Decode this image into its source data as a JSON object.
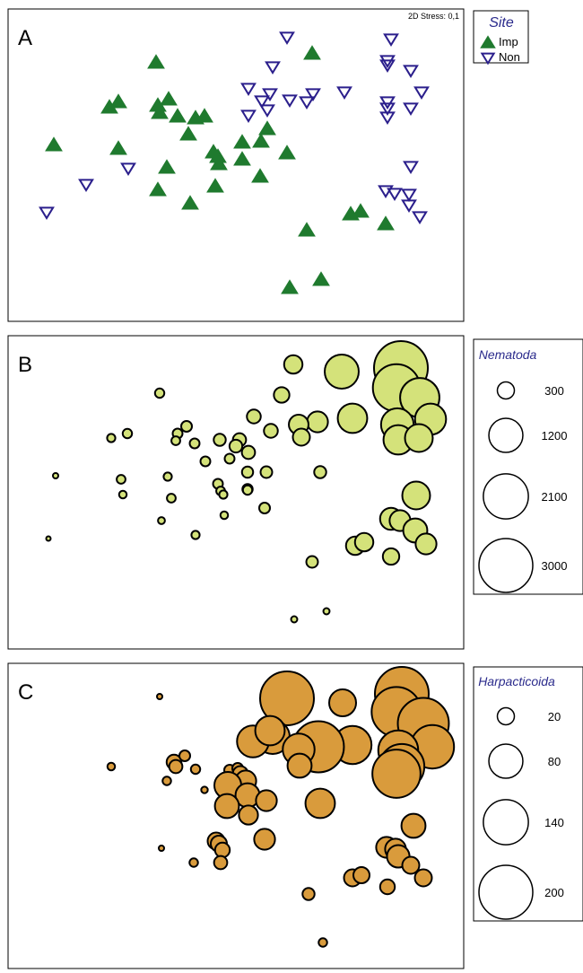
{
  "chart_data": [
    {
      "type": "scatter",
      "panel": "A",
      "annotation": "2D Stress: 0,1",
      "legend": {
        "title": "Site",
        "placement": "right"
      },
      "series": [
        {
          "name": "Imp",
          "color": "#1f7a2e",
          "marker": "triangle-up",
          "points": [
            [
              174,
              70
            ],
            [
              348,
              60
            ],
            [
              132,
              114
            ],
            [
              122,
              120
            ],
            [
              176,
              118
            ],
            [
              188,
              111
            ],
            [
              178,
              126
            ],
            [
              198,
              130
            ],
            [
              218,
              132
            ],
            [
              228,
              130
            ],
            [
              210,
              150
            ],
            [
              60,
              162
            ],
            [
              132,
              166
            ],
            [
              238,
              170
            ],
            [
              243,
              175
            ],
            [
              244,
              183
            ],
            [
              186,
              187
            ],
            [
              270,
              159
            ],
            [
              291,
              158
            ],
            [
              298,
              144
            ],
            [
              320,
              171
            ],
            [
              270,
              178
            ],
            [
              290,
              197
            ],
            [
              176,
              212
            ],
            [
              240,
              208
            ],
            [
              212,
              227
            ],
            [
              342,
              257
            ],
            [
              391,
              239
            ],
            [
              402,
              236
            ],
            [
              430,
              250
            ],
            [
              358,
              312
            ],
            [
              323,
              321
            ]
          ]
        },
        {
          "name": "Non",
          "color": "#2b1f8c",
          "marker": "triangle-down",
          "points": [
            [
              320,
              41
            ],
            [
              436,
              43
            ],
            [
              304,
              74
            ],
            [
              432,
              67
            ],
            [
              432,
              72
            ],
            [
              458,
              78
            ],
            [
              277,
              98
            ],
            [
              301,
              104
            ],
            [
              349,
              104
            ],
            [
              384,
              102
            ],
            [
              470,
              102
            ],
            [
              292,
              112
            ],
            [
              298,
              122
            ],
            [
              323,
              111
            ],
            [
              342,
              113
            ],
            [
              432,
              113
            ],
            [
              432,
              120
            ],
            [
              458,
              120
            ],
            [
              432,
              130
            ],
            [
              277,
              128
            ],
            [
              143,
              187
            ],
            [
              96,
              205
            ],
            [
              458,
              185
            ],
            [
              430,
              212
            ],
            [
              440,
              215
            ],
            [
              456,
              216
            ],
            [
              456,
              228
            ],
            [
              468,
              241
            ],
            [
              52,
              236
            ]
          ]
        }
      ]
    },
    {
      "type": "scatter",
      "panel": "B",
      "legend": {
        "title": "Nematoda",
        "placement": "right",
        "sizes": [
          300,
          1200,
          2100,
          3000
        ]
      },
      "color": "#d4e27a",
      "points": [
        [
          447,
          410,
          3000
        ],
        [
          442,
          432,
          2300
        ],
        [
          468,
          443,
          1600
        ],
        [
          480,
          467,
          1000
        ],
        [
          443,
          473,
          1100
        ],
        [
          444,
          490,
          900
        ],
        [
          467,
          488,
          800
        ],
        [
          381,
          414,
          1200
        ],
        [
          393,
          466,
          900
        ],
        [
          354,
          470,
          450
        ],
        [
          333,
          473,
          400
        ],
        [
          336,
          487,
          300
        ],
        [
          327,
          406,
          350
        ],
        [
          314,
          440,
          250
        ],
        [
          283,
          464,
          200
        ],
        [
          302,
          480,
          200
        ],
        [
          267,
          490,
          180
        ],
        [
          263,
          497,
          170
        ],
        [
          277,
          504,
          180
        ],
        [
          245,
          490,
          150
        ],
        [
          217,
          494,
          100
        ],
        [
          208,
          475,
          120
        ],
        [
          198,
          483,
          100
        ],
        [
          196,
          491,
          80
        ],
        [
          178,
          438,
          90
        ],
        [
          142,
          483,
          90
        ],
        [
          124,
          488,
          70
        ],
        [
          62,
          530,
          30
        ],
        [
          54,
          600,
          12
        ],
        [
          135,
          534,
          80
        ],
        [
          137,
          551,
          60
        ],
        [
          187,
          531,
          70
        ],
        [
          191,
          555,
          80
        ],
        [
          229,
          514,
          100
        ],
        [
          256,
          511,
          100
        ],
        [
          276,
          526,
          130
        ],
        [
          297,
          526,
          140
        ],
        [
          276,
          545,
          110
        ],
        [
          243,
          539,
          100
        ],
        [
          246,
          547,
          80
        ],
        [
          249,
          551,
          70
        ],
        [
          276,
          546,
          90
        ],
        [
          357,
          526,
          150
        ],
        [
          250,
          574,
          60
        ],
        [
          180,
          580,
          50
        ],
        [
          218,
          596,
          70
        ],
        [
          295,
          566,
          120
        ],
        [
          464,
          552,
          800
        ],
        [
          436,
          578,
          500
        ],
        [
          446,
          580,
          450
        ],
        [
          463,
          591,
          600
        ],
        [
          475,
          606,
          450
        ],
        [
          396,
          608,
          350
        ],
        [
          406,
          604,
          350
        ],
        [
          436,
          620,
          280
        ],
        [
          348,
          626,
          140
        ],
        [
          328,
          690,
          40
        ],
        [
          364,
          681,
          40
        ]
      ]
    },
    {
      "type": "scatter",
      "panel": "C",
      "legend": {
        "title": "Harpacticoida",
        "placement": "right",
        "sizes": [
          20,
          80,
          140,
          200
        ]
      },
      "color": "#d99b3c",
      "points": [
        [
          320,
          778,
          200
        ],
        [
          448,
          773,
          200
        ],
        [
          442,
          793,
          170
        ],
        [
          472,
          806,
          180
        ],
        [
          482,
          832,
          130
        ],
        [
          444,
          836,
          110
        ],
        [
          448,
          854,
          140
        ],
        [
          442,
          862,
          160
        ],
        [
          382,
          783,
          50
        ],
        [
          393,
          830,
          100
        ],
        [
          355,
          832,
          180
        ],
        [
          304,
          821,
          80
        ],
        [
          282,
          826,
          70
        ],
        [
          301,
          814,
          60
        ],
        [
          333,
          835,
          70
        ],
        [
          334,
          853,
          40
        ],
        [
          194,
          849,
          15
        ],
        [
          196,
          854,
          12
        ],
        [
          206,
          842,
          8
        ],
        [
          218,
          857,
          6
        ],
        [
          256,
          858,
          8
        ],
        [
          265,
          856,
          8
        ],
        [
          268,
          862,
          16
        ],
        [
          274,
          870,
          30
        ],
        [
          254,
          875,
          50
        ],
        [
          276,
          886,
          40
        ],
        [
          297,
          892,
          30
        ],
        [
          253,
          898,
          40
        ],
        [
          277,
          908,
          25
        ],
        [
          295,
          935,
          30
        ],
        [
          357,
          895,
          60
        ],
        [
          241,
          937,
          20
        ],
        [
          244,
          940,
          18
        ],
        [
          248,
          947,
          15
        ],
        [
          246,
          961,
          12
        ],
        [
          186,
          870,
          5
        ],
        [
          228,
          880,
          3
        ],
        [
          178,
          776,
          2
        ],
        [
          124,
          854,
          4
        ],
        [
          180,
          945,
          2
        ],
        [
          216,
          961,
          5
        ],
        [
          461,
          920,
          40
        ],
        [
          431,
          944,
          30
        ],
        [
          441,
          946,
          30
        ],
        [
          444,
          954,
          35
        ],
        [
          458,
          964,
          20
        ],
        [
          472,
          978,
          20
        ],
        [
          393,
          978,
          20
        ],
        [
          403,
          975,
          18
        ],
        [
          432,
          988,
          15
        ],
        [
          344,
          996,
          10
        ],
        [
          360,
          1050,
          5
        ]
      ]
    }
  ]
}
